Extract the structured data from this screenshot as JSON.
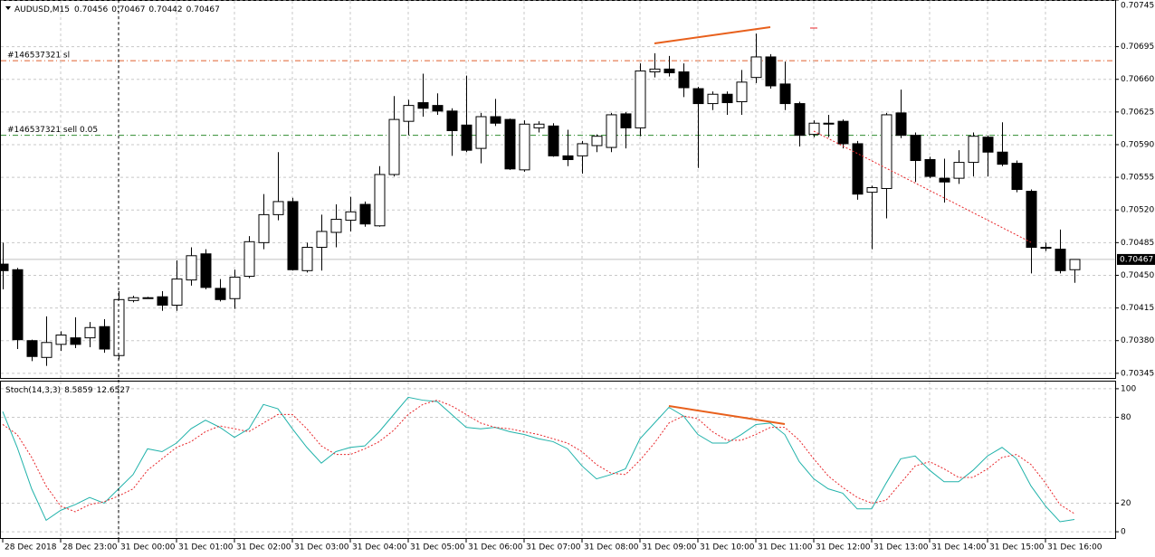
{
  "chart_data": [
    {
      "type": "candlestick",
      "title": "AUDUSD,M15",
      "open": [
        0.70462,
        0.70456,
        0.7038,
        0.70362,
        0.70376,
        0.70383,
        0.70383,
        0.70395,
        0.70364,
        0.70423,
        0.70426,
        0.70427,
        0.70418,
        0.70445,
        0.70473,
        0.70436,
        0.70425,
        0.70449,
        0.70485,
        0.70515,
        0.70529,
        0.70455,
        0.7048,
        0.70496,
        0.70509,
        0.70526,
        0.70503,
        0.70558,
        0.70615,
        0.70635,
        0.70632,
        0.70626,
        0.70611,
        0.70586,
        0.7062,
        0.70617,
        0.70563,
        0.70608,
        0.7061,
        0.70578,
        0.70578,
        0.70589,
        0.70587,
        0.70623,
        0.70608,
        0.70668,
        0.70671,
        0.70668,
        0.7065,
        0.70634,
        0.70644,
        0.70636,
        0.70662,
        0.70684,
        0.70655,
        0.70634,
        0.70601,
        0.70613,
        0.70615,
        0.70591,
        0.70539,
        0.70543,
        0.70624,
        0.706,
        0.70574,
        0.70554,
        0.70554,
        0.70571,
        0.70598,
        0.70582,
        0.7057,
        0.7054,
        0.7048,
        0.70478,
        0.70456
      ],
      "high": [
        0.70485,
        0.70458,
        0.70381,
        0.70406,
        0.7039,
        0.70405,
        0.704,
        0.70403,
        0.70433,
        0.70428,
        0.70427,
        0.70433,
        0.70466,
        0.7048,
        0.70478,
        0.70446,
        0.70456,
        0.70492,
        0.70537,
        0.70582,
        0.70533,
        0.70485,
        0.70515,
        0.70526,
        0.70534,
        0.70529,
        0.70567,
        0.70642,
        0.70638,
        0.70666,
        0.70645,
        0.70629,
        0.70664,
        0.70624,
        0.70639,
        0.70618,
        0.70616,
        0.70615,
        0.70613,
        0.70606,
        0.70594,
        0.70601,
        0.70624,
        0.70625,
        0.70677,
        0.70688,
        0.70685,
        0.70677,
        0.70652,
        0.70647,
        0.70647,
        0.7067,
        0.70709,
        0.70687,
        0.70679,
        0.70636,
        0.70616,
        0.70622,
        0.70617,
        0.70594,
        0.70546,
        0.70624,
        0.70649,
        0.70603,
        0.70577,
        0.70575,
        0.70584,
        0.70603,
        0.706,
        0.70614,
        0.70573,
        0.70542,
        0.70485,
        0.70499,
        0.70467
      ],
      "low": [
        0.70435,
        0.70371,
        0.70358,
        0.70353,
        0.70369,
        0.70372,
        0.70373,
        0.70367,
        0.7036,
        0.70421,
        0.70425,
        0.70412,
        0.70412,
        0.70439,
        0.70435,
        0.70422,
        0.70414,
        0.70447,
        0.70478,
        0.70509,
        0.70455,
        0.70453,
        0.70455,
        0.7048,
        0.70497,
        0.70502,
        0.70502,
        0.70556,
        0.706,
        0.7062,
        0.70622,
        0.70578,
        0.70582,
        0.7057,
        0.7061,
        0.70563,
        0.70561,
        0.70603,
        0.70577,
        0.70567,
        0.70559,
        0.70582,
        0.70582,
        0.70586,
        0.70599,
        0.70662,
        0.70663,
        0.70641,
        0.70565,
        0.70627,
        0.70622,
        0.70622,
        0.70656,
        0.7065,
        0.70627,
        0.70588,
        0.70598,
        0.70598,
        0.70586,
        0.70531,
        0.70478,
        0.70511,
        0.70597,
        0.7055,
        0.70554,
        0.70528,
        0.70548,
        0.70556,
        0.70556,
        0.70567,
        0.70539,
        0.70452,
        0.70476,
        0.70452,
        0.70442
      ],
      "close": [
        0.70455,
        0.70381,
        0.70363,
        0.70378,
        0.70386,
        0.70376,
        0.70394,
        0.70371,
        0.70424,
        0.70426,
        0.70426,
        0.70418,
        0.70446,
        0.70471,
        0.70437,
        0.70424,
        0.70448,
        0.70486,
        0.70515,
        0.70529,
        0.70456,
        0.7048,
        0.70497,
        0.7051,
        0.70518,
        0.70505,
        0.70558,
        0.70617,
        0.70632,
        0.70629,
        0.70626,
        0.70605,
        0.70584,
        0.7062,
        0.70613,
        0.70564,
        0.70612,
        0.70612,
        0.70578,
        0.70574,
        0.70591,
        0.70599,
        0.70622,
        0.70608,
        0.70669,
        0.70671,
        0.70667,
        0.70651,
        0.70634,
        0.70644,
        0.70635,
        0.70657,
        0.70684,
        0.70653,
        0.70634,
        0.706,
        0.70613,
        0.70612,
        0.70591,
        0.70537,
        0.70544,
        0.70622,
        0.706,
        0.70573,
        0.70556,
        0.7055,
        0.70571,
        0.70599,
        0.70582,
        0.70569,
        0.70542,
        0.7048,
        0.70479,
        0.70455,
        0.70467
      ],
      "ylim": [
        0.7034,
        0.70745
      ],
      "yticks": [
        0.70745,
        0.70695,
        {
          "value": 0.7066,
          "label": "0.70660"
        },
        0.70625,
        {
          "value": 0.7059,
          "label": "0.70590"
        },
        0.70555,
        {
          "value": 0.7052,
          "label": "0.70520"
        },
        0.70485,
        {
          "value": 0.7045,
          "label": "0.70450"
        },
        0.70415,
        {
          "value": 0.7038,
          "label": "0.70380"
        },
        0.70345
      ],
      "order_lines": [
        {
          "label": "#146537321 sl",
          "value": 0.7068,
          "color": "#e0602e"
        },
        {
          "label": "#146537321 sell 0.05",
          "value": 0.706,
          "color": "#2e8b2e"
        }
      ],
      "grid": true
    },
    {
      "type": "line",
      "title": "Stoch(14,3,3)",
      "categories": [
        "28 Dec 2018",
        null,
        null,
        null,
        "28 Dec 23:00",
        null,
        null,
        null,
        "31 Dec 00:00",
        null,
        null,
        null,
        "31 Dec 01:00",
        null,
        null,
        null,
        "31 Dec 02:00",
        null,
        null,
        null,
        "31 Dec 03:00",
        null,
        null,
        null,
        "31 Dec 04:00",
        null,
        null,
        null,
        "31 Dec 05:00",
        null,
        null,
        null,
        "31 Dec 06:00",
        null,
        null,
        null,
        "31 Dec 07:00",
        null,
        null,
        null,
        "31 Dec 08:00",
        null,
        null,
        null,
        "31 Dec 09:00",
        null,
        null,
        null,
        "31 Dec 10:00",
        null,
        null,
        null,
        "31 Dec 11:00",
        null,
        null,
        null,
        "31 Dec 12:00",
        null,
        null,
        null,
        "31 Dec 13:00",
        null,
        null,
        null,
        "31 Dec 14:00",
        null,
        null,
        null,
        "31 Dec 15:00",
        null,
        null,
        null,
        "31 Dec 16:00",
        null,
        null
      ],
      "series": [
        {
          "color": "#20b2aa",
          "dashed": false,
          "values": [
            84,
            59,
            30,
            8,
            15,
            19,
            24,
            20,
            30,
            40,
            58,
            56,
            62,
            72,
            78,
            73,
            66,
            72,
            89,
            86,
            72,
            59,
            48,
            56,
            59,
            60,
            70,
            82,
            94,
            92,
            91,
            82,
            73,
            72,
            73,
            70,
            68,
            65,
            63,
            58,
            46,
            37,
            40,
            44,
            65,
            76,
            87,
            81,
            68,
            62,
            62,
            68,
            75,
            76,
            68,
            49,
            37,
            30,
            27,
            16,
            16,
            34,
            51,
            53,
            43,
            35,
            35,
            43,
            53,
            59,
            51,
            32,
            18,
            7,
            8.5859
          ]
        },
        {
          "color": "#e8262a",
          "dashed": true,
          "values": [
            75,
            68,
            52,
            32,
            18,
            14,
            19,
            21,
            25,
            30,
            43,
            51,
            59,
            63,
            70,
            74,
            72,
            70,
            76,
            82,
            82,
            72,
            60,
            54,
            54,
            58,
            63,
            71,
            82,
            89,
            92,
            88,
            82,
            76,
            73,
            72,
            70,
            68,
            65,
            62,
            56,
            47,
            41,
            40,
            50,
            62,
            76,
            81,
            79,
            70,
            64,
            64,
            68,
            73,
            73,
            64,
            51,
            39,
            31,
            24,
            20,
            22,
            34,
            46,
            49,
            44,
            38,
            38,
            44,
            52,
            54,
            47,
            34,
            19,
            12.6527
          ]
        }
      ],
      "ylim": [
        -5,
        105
      ],
      "yticks": [
        100,
        80,
        20,
        0
      ],
      "grid": true
    }
  ]
}
